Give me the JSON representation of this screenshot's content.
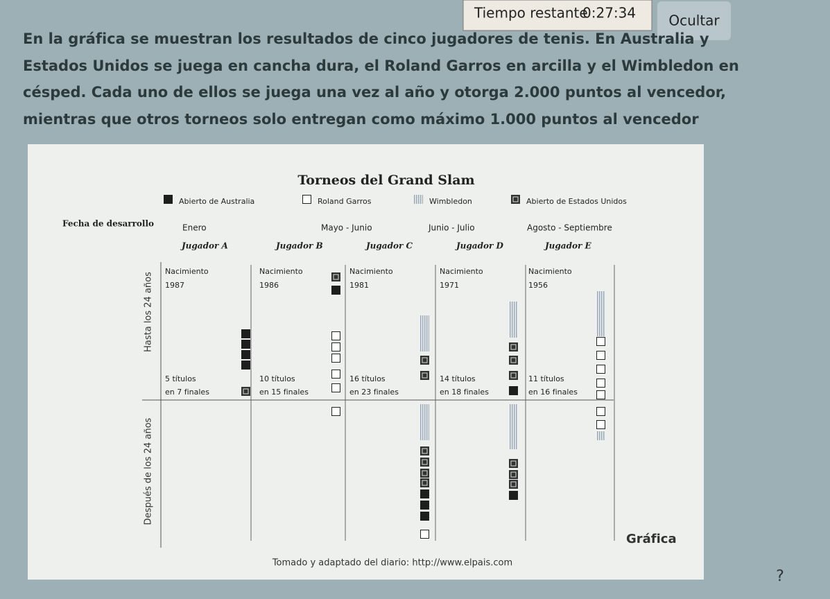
{
  "header": {
    "timer_label": "Tiempo restante",
    "timer_value": "0:27:34",
    "hide_button": "Ocultar"
  },
  "question": {
    "lines": [
      "En la gráfica se muestran los resultados de cinco jugadores de tenis. En Australia y",
      "Estados Unidos se juega en cancha dura, el Roland Garros en arcilla y el Wimbledon en",
      "césped. Cada uno de ellos se juega una vez al año y otorga 2.000 puntos al vencedor,",
      "mientras que otros torneos solo entregan como máximo 1.000 puntos al vencedor"
    ]
  },
  "figure": {
    "title": "Torneos del Grand Slam",
    "legend": [
      "Abierto de Australia",
      "Roland Garros",
      "Wimbledon",
      "Abierto de Estados Unidos"
    ],
    "date_label": "Fecha de desarrollo",
    "dates": [
      "Enero",
      "Mayo - Junio",
      "Junio - Julio",
      "Agosto - Septiembre"
    ],
    "players": [
      {
        "name": "Jugador A",
        "birth_label": "Nacimiento",
        "birth_year": "1987",
        "titles": "5 títulos",
        "finals": "en 7 finales"
      },
      {
        "name": "Jugador B",
        "birth_label": "Nacimiento",
        "birth_year": "1986",
        "titles": "10 títulos",
        "finals": "en 15 finales"
      },
      {
        "name": "Jugador C",
        "birth_label": "Nacimiento",
        "birth_year": "1981",
        "titles": "16 títulos",
        "finals": "en 23 finales"
      },
      {
        "name": "Jugador D",
        "birth_label": "Nacimiento",
        "birth_year": "1971",
        "titles": "14 títulos",
        "finals": "en 18 finales"
      },
      {
        "name": "Jugador E",
        "birth_label": "Nacimiento",
        "birth_year": "1956",
        "titles": "11 títulos",
        "finals": "en 16 finales"
      }
    ],
    "before_label": "Hasta los 24 años",
    "after_label": "Después de los 24 años",
    "caption": "Gráfica",
    "source": "Tomado y adaptado del diario: http://www.elpais.com"
  },
  "help": "?"
}
